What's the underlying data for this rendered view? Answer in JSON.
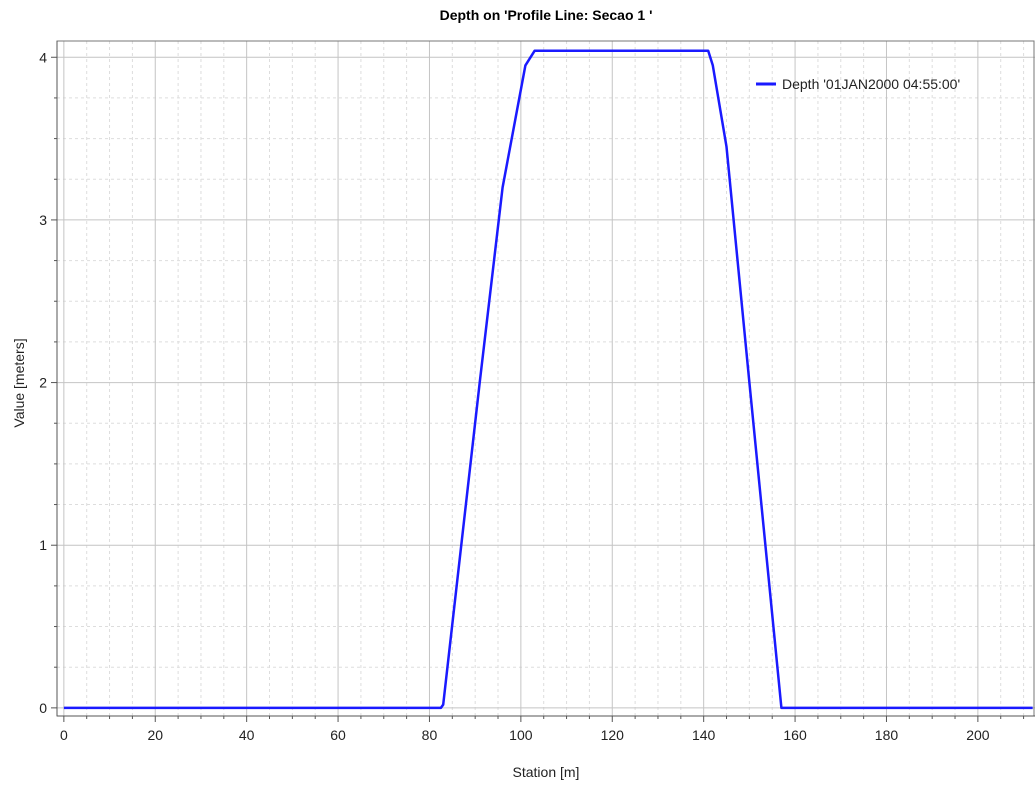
{
  "chart_data": {
    "type": "line",
    "title": "Depth on 'Profile Line: Secao 1 '",
    "xlabel": "Station [m]",
    "ylabel": "Value [meters]",
    "xlim": [
      -1.5,
      212.5
    ],
    "ylim": [
      -0.05,
      4.1
    ],
    "xticks": [
      0,
      20,
      40,
      60,
      80,
      100,
      120,
      140,
      160,
      180,
      200
    ],
    "yticks": [
      0,
      1,
      2,
      3,
      4
    ],
    "x_minor_step": 5,
    "y_minor_step": 0.25,
    "grid": true,
    "legend_position": "top-right",
    "series": [
      {
        "name": "Depth '01JAN2000 04:55:00'",
        "color": "#1a1aff",
        "x": [
          0,
          82.5,
          83,
          91,
          96,
          101,
          103,
          141,
          142,
          145,
          150,
          157,
          212
        ],
        "y": [
          0,
          0,
          0.02,
          2.0,
          3.2,
          3.95,
          4.04,
          4.04,
          3.95,
          3.45,
          2.0,
          0,
          0
        ]
      }
    ]
  }
}
